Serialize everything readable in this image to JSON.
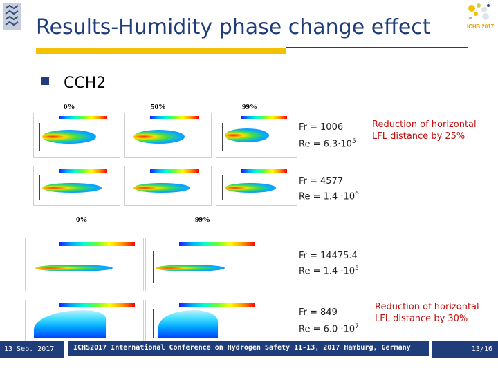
{
  "slide": {
    "title": "Results-Humidity phase change effect",
    "bullet_text": "CCH2"
  },
  "grid_top": {
    "col_headers": [
      "0%",
      "50%",
      "99%"
    ]
  },
  "grid_bottom": {
    "col_headers": [
      "0%",
      "99%"
    ]
  },
  "cases": [
    {
      "fr": "Fr = 1006",
      "re_base": "Re = 6.3·10",
      "re_exp": "5"
    },
    {
      "fr": "Fr = 4577",
      "re_base": "Re = 1.4 ·10",
      "re_exp": "6"
    },
    {
      "fr": "Fr = 14475.4",
      "re_base": "Re = 1.4 ·10",
      "re_exp": "5"
    },
    {
      "fr": "Fr = 849",
      "re_base": "Re = 6.0 ·10",
      "re_exp": "7"
    }
  ],
  "notes": [
    {
      "line1": "Reduction of horizontal",
      "line2": "LFL distance by 25%"
    },
    {
      "line1": "Reduction of horizontal",
      "line2": "LFL distance by 30%"
    }
  ],
  "footer": {
    "date": "13 Sep. 2017",
    "conference": "ICHS2017 International Conference on Hydrogen Safety 11-13, 2017 Hamburg, Germany",
    "page": "13/16"
  },
  "logo_right_text": "ICHS 2017",
  "colors": {
    "title": "#1f3d7a",
    "accent_yellow": "#f2c200",
    "note_red": "#c01010",
    "footer_bg": "#1f3d7a"
  },
  "icons": [
    "university-logo-icon",
    "ichs-logo-icon",
    "bullet-square-icon"
  ]
}
